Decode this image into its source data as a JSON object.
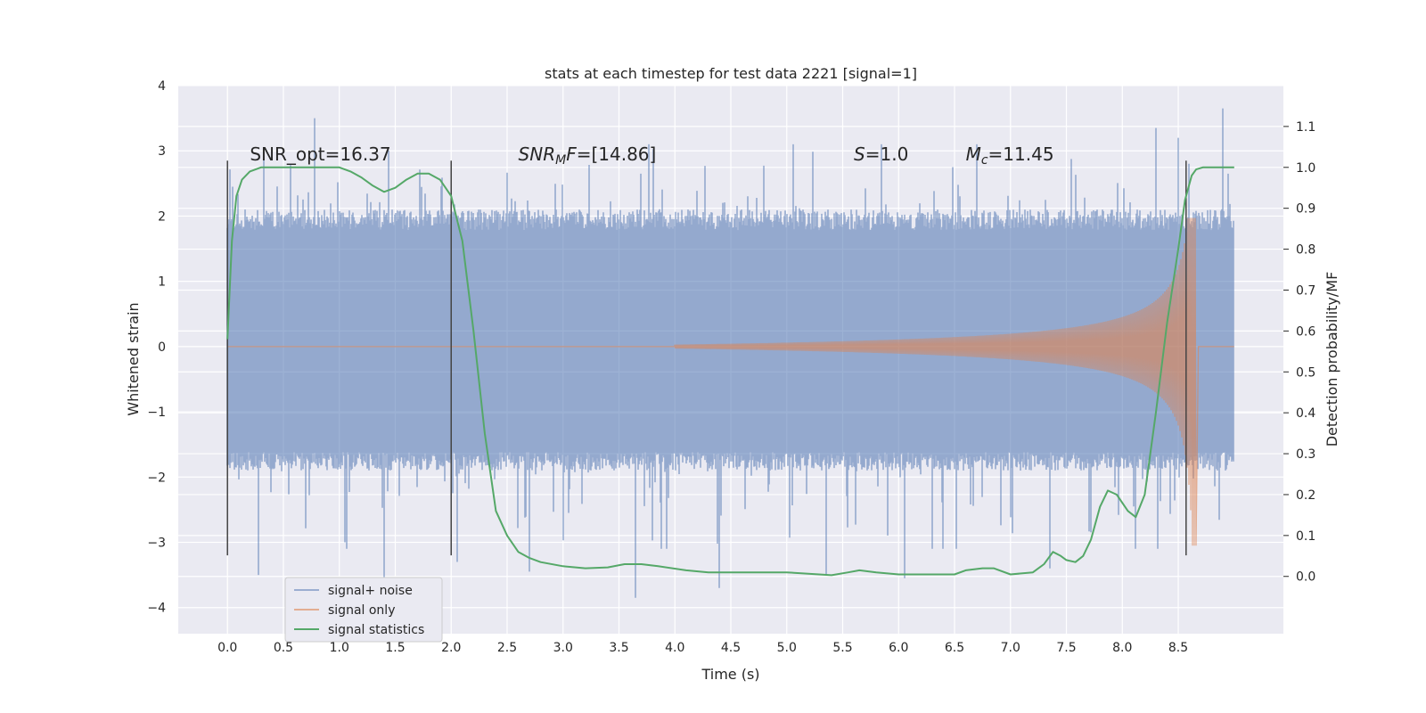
{
  "chart_data": {
    "type": "line",
    "title": "stats at each timestep for test data 2221 [signal=1]",
    "xlabel": "Time (s)",
    "ylabel": "Whitened strain",
    "y2label": "Detection probability/MF",
    "xlim": [
      -0.44,
      9.44
    ],
    "ylim": [
      -4.4,
      4.0
    ],
    "y2lim": [
      -0.14,
      1.2
    ],
    "xticks": [
      0.0,
      0.5,
      1.0,
      1.5,
      2.0,
      2.5,
      3.0,
      3.5,
      4.0,
      4.5,
      5.0,
      5.5,
      6.0,
      6.5,
      7.0,
      7.5,
      8.0,
      8.5
    ],
    "xtick_labels": [
      "0.0",
      "0.5",
      "1.0",
      "1.5",
      "2.0",
      "2.5",
      "3.0",
      "3.5",
      "4.0",
      "4.5",
      "5.0",
      "5.5",
      "6.0",
      "6.5",
      "7.0",
      "7.5",
      "8.0",
      "8.5"
    ],
    "yticks": [
      -4,
      -3,
      -2,
      -1,
      0,
      1,
      2,
      3,
      4
    ],
    "ytick_labels": [
      "−4",
      "−3",
      "−2",
      "−1",
      "0",
      "1",
      "2",
      "3",
      "4"
    ],
    "y2ticks": [
      0.0,
      0.1,
      0.2,
      0.3,
      0.4,
      0.5,
      0.6,
      0.7,
      0.8,
      0.9,
      1.0,
      1.1
    ],
    "y2tick_labels": [
      "0.0",
      "0.1",
      "0.2",
      "0.3",
      "0.4",
      "0.5",
      "0.6",
      "0.7",
      "0.8",
      "0.9",
      "1.0",
      "1.1"
    ],
    "grid": true,
    "legend_position": "lower-left",
    "series": [
      {
        "name": "signal+ noise",
        "color": "#4c72b0",
        "axis": "left",
        "t_range": [
          0.0,
          8.99
        ],
        "typical_envelope": [
          -1.9,
          2.1
        ],
        "peak_spikes": [
          [
            0.05,
            2.45
          ],
          [
            0.28,
            -3.5
          ],
          [
            0.78,
            3.5
          ],
          [
            1.05,
            -3.0
          ],
          [
            1.4,
            -3.6
          ],
          [
            2.05,
            -3.3
          ],
          [
            2.7,
            -3.45
          ],
          [
            3.65,
            -3.85
          ],
          [
            4.4,
            -3.7
          ],
          [
            5.35,
            -3.5
          ],
          [
            5.85,
            3.1
          ],
          [
            6.05,
            -3.55
          ],
          [
            7.35,
            -3.4
          ],
          [
            8.3,
            3.35
          ],
          [
            8.5,
            3.2
          ],
          [
            8.9,
            3.65
          ]
        ]
      },
      {
        "name": "signal only",
        "color": "#dd8452",
        "axis": "left",
        "chirp": {
          "start": 4.0,
          "end": 8.66,
          "peak_time": 8.64,
          "peak_amplitude_pos": 1.97,
          "peak_amplitude_neg": -3.05,
          "baseline": 0.0
        }
      },
      {
        "name": "signal statistics",
        "color": "#55a868",
        "axis": "right",
        "x": [
          0.0,
          0.04,
          0.08,
          0.13,
          0.2,
          0.3,
          0.5,
          0.8,
          1.0,
          1.1,
          1.2,
          1.3,
          1.4,
          1.5,
          1.6,
          1.7,
          1.8,
          1.9,
          2.0,
          2.1,
          2.2,
          2.3,
          2.4,
          2.5,
          2.6,
          2.7,
          2.8,
          3.0,
          3.2,
          3.4,
          3.55,
          3.7,
          3.85,
          4.1,
          4.3,
          4.5,
          5.0,
          5.4,
          5.55,
          5.65,
          5.8,
          6.0,
          6.3,
          6.5,
          6.6,
          6.75,
          6.85,
          7.0,
          7.2,
          7.3,
          7.38,
          7.45,
          7.5,
          7.58,
          7.65,
          7.72,
          7.8,
          7.87,
          7.95,
          8.05,
          8.12,
          8.2,
          8.3,
          8.4,
          8.5,
          8.56,
          8.62,
          8.66,
          8.72,
          8.85,
          9.0
        ],
        "y": [
          0.58,
          0.82,
          0.93,
          0.97,
          0.99,
          1.0,
          1.0,
          1.0,
          1.0,
          0.99,
          0.975,
          0.955,
          0.94,
          0.95,
          0.97,
          0.985,
          0.985,
          0.97,
          0.93,
          0.82,
          0.6,
          0.35,
          0.16,
          0.1,
          0.06,
          0.045,
          0.035,
          0.025,
          0.02,
          0.022,
          0.03,
          0.03,
          0.025,
          0.015,
          0.01,
          0.01,
          0.01,
          0.003,
          0.01,
          0.015,
          0.01,
          0.005,
          0.005,
          0.005,
          0.015,
          0.02,
          0.02,
          0.005,
          0.01,
          0.03,
          0.06,
          0.05,
          0.04,
          0.035,
          0.05,
          0.09,
          0.17,
          0.21,
          0.2,
          0.16,
          0.145,
          0.2,
          0.4,
          0.62,
          0.8,
          0.92,
          0.98,
          0.995,
          1.0,
          1.0,
          1.0
        ]
      }
    ],
    "vertical_lines": [
      0.0,
      2.0,
      8.57
    ],
    "vertical_lines_range": [
      -3.2,
      2.85
    ],
    "annotations": [
      {
        "text": "SNR_opt=16.37",
        "x": 0.2,
        "y": 2.85
      },
      {
        "text": "SNRMF=[14.86]",
        "x": 2.6,
        "y": 2.85
      },
      {
        "text": "S=1.0",
        "x": 5.6,
        "y": 2.85
      },
      {
        "text": "Mc=11.45",
        "x": 6.6,
        "y": 2.85
      }
    ]
  }
}
